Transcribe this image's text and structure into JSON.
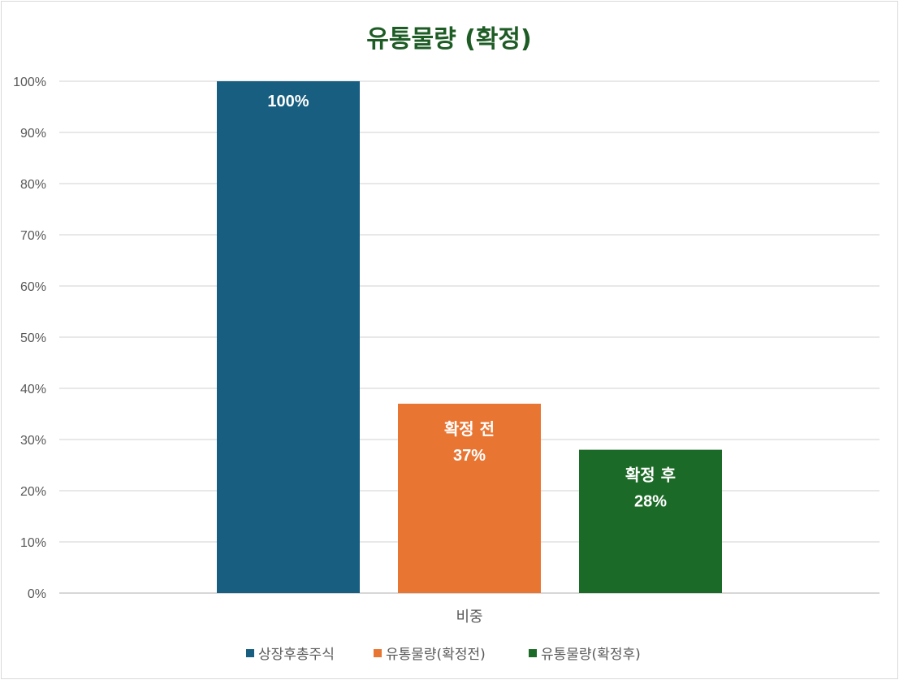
{
  "chart_data": {
    "type": "bar",
    "title": "유통물량 (확정)",
    "categories": [
      "비중"
    ],
    "ylim": [
      0,
      100
    ],
    "y_ticks": [
      "0%",
      "10%",
      "20%",
      "30%",
      "40%",
      "50%",
      "60%",
      "70%",
      "80%",
      "90%",
      "100%"
    ],
    "grid": true,
    "legend_position": "bottom",
    "series": [
      {
        "name": "상장후총주식",
        "values": [
          100
        ],
        "color": "#175e80",
        "label_title": "",
        "label_value": "100%"
      },
      {
        "name": "유통물량(확정전)",
        "values": [
          37
        ],
        "color": "#e97532",
        "label_title": "확정 전",
        "label_value": "37%"
      },
      {
        "name": "유통물량(확정후)",
        "values": [
          28
        ],
        "color": "#1c6a27",
        "label_title": "확정 후",
        "label_value": "28%"
      }
    ]
  }
}
